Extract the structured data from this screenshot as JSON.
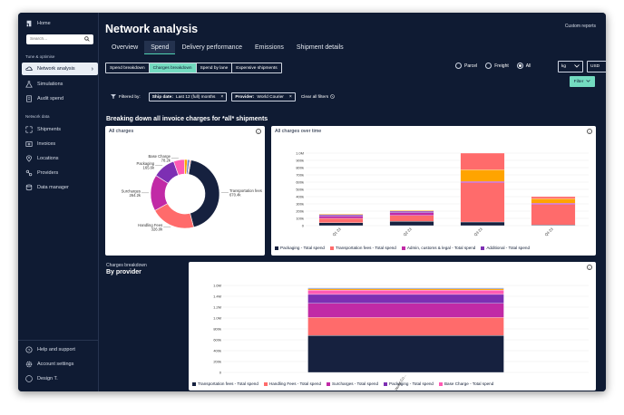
{
  "sidebar": {
    "home": "Home",
    "search_placeholder": "Search...",
    "section_tune": "Tune & optimise",
    "section_network": "Network data",
    "items": [
      {
        "label": "Network analysis",
        "icon": "cloud-icon"
      },
      {
        "label": "Simulations",
        "icon": "flask-icon"
      },
      {
        "label": "Audit spend",
        "icon": "receipt-icon"
      }
    ],
    "network_items": [
      {
        "label": "Shipments",
        "icon": "shipments-icon"
      },
      {
        "label": "Invoices",
        "icon": "invoice-icon"
      },
      {
        "label": "Locations",
        "icon": "location-icon"
      },
      {
        "label": "Providers",
        "icon": "providers-icon"
      },
      {
        "label": "Data manager",
        "icon": "database-icon"
      }
    ],
    "bottom_items": [
      {
        "label": "Help and support",
        "icon": "help-icon"
      },
      {
        "label": "Account settings",
        "icon": "gear-icon"
      },
      {
        "label": "Design T.",
        "icon": "avatar-icon",
        "initials": "DT"
      }
    ]
  },
  "header": {
    "title": "Network analysis",
    "custom_reports": "Custom reports"
  },
  "tabs": [
    "Overview",
    "Spend",
    "Delivery performance",
    "Emissions",
    "Shipment details"
  ],
  "subtabs": [
    "Spend breakdown",
    "Charges breakdown",
    "Spend by lane",
    "Expensive shipments"
  ],
  "modes": [
    "Parcel",
    "Freight",
    "All"
  ],
  "unit_select": "kg",
  "currency_select": "USD",
  "filter_button": "Filter",
  "filters": {
    "label": "Filtered by:",
    "chips": [
      {
        "key": "Ship date:",
        "value": "Last 12 (full) months"
      },
      {
        "key": "Provider:",
        "value": "World Courier"
      }
    ],
    "clear": "Clear all filters"
  },
  "headline": "Breaking down all invoice charges for *all* shipments",
  "colors": {
    "navy": "#16213f",
    "salmon": "#ff6b6b",
    "orange": "#ffa400",
    "magenta": "#c12aa6",
    "purple": "#7d2fb3",
    "pink": "#ff5ab4",
    "blue": "#5a78c8"
  },
  "all_charges": {
    "title": "All charges",
    "slices": [
      {
        "name": "Transportation fees",
        "label": "Transportation fees",
        "value": 670.4,
        "display": "670.4k",
        "color": "#16213f"
      },
      {
        "name": "Handling Fees",
        "label": "Handling Fees",
        "value": 326.0,
        "display": "326.0k",
        "color": "#ff6b6b"
      },
      {
        "name": "Surcharges",
        "label": "Surcharges",
        "value": 264.2,
        "display": "264.2k",
        "color": "#c12aa6"
      },
      {
        "name": "Packaging",
        "label": "Packaging",
        "value": 165.6,
        "display": "165.6k",
        "color": "#7d2fb3"
      },
      {
        "name": "Base Charge",
        "label": "Base Charge",
        "value": 78.2,
        "display": "78.2k",
        "color": "#ff5ab4"
      },
      {
        "name": "Other 1",
        "label": "",
        "value": 22,
        "display": "",
        "color": "#ffa400"
      },
      {
        "name": "Other 2",
        "label": "",
        "value": 16,
        "display": "",
        "color": "#5a78c8"
      },
      {
        "name": "Other 3",
        "label": "",
        "value": 10,
        "display": "",
        "color": "#f4a7a7"
      }
    ]
  },
  "chart_data": [
    {
      "type": "pie",
      "title": "All charges",
      "categories": [
        "Transportation fees",
        "Handling Fees",
        "Surcharges",
        "Packaging",
        "Base Charge"
      ],
      "values": [
        670.4,
        326.0,
        264.2,
        165.6,
        78.2
      ],
      "units": "k"
    },
    {
      "type": "bar",
      "title": "All charges over time",
      "categories": [
        "Q1 23",
        "Q2 23",
        "Q3 23",
        "Q4 23"
      ],
      "ylim": [
        0,
        1000000
      ],
      "yticks": [
        "0",
        "100k",
        "200k",
        "300k",
        "400k",
        "500k",
        "600k",
        "700k",
        "800k",
        "900k",
        "1.0M"
      ],
      "series": [
        {
          "name": "Packaging - Total spend",
          "values": [
            40000,
            60000,
            50000,
            10000
          ],
          "color": "#16213f"
        },
        {
          "name": "Transportation fees - Total spend",
          "values": [
            60000,
            80000,
            540000,
            280000
          ],
          "color": "#ff6b6b"
        },
        {
          "name": "Admin, customs & legal - Total spend",
          "values": [
            30000,
            40000,
            20000,
            20000
          ],
          "color": "#c12aa6"
        },
        {
          "name": "Additional - Total spend",
          "values": [
            20000,
            20000,
            0,
            0
          ],
          "color": "#7d2fb3"
        },
        {
          "name": "",
          "values": [
            10000,
            10000,
            160000,
            60000
          ],
          "color": "#ffa400"
        },
        {
          "name": "",
          "values": [
            0,
            0,
            230000,
            30000
          ],
          "color": "#ff6b6b"
        }
      ],
      "legend": [
        "Packaging - Total spend",
        "Transportation fees - Total spend",
        "Admin, customs & legal - Total spend",
        "Additional - Total spend"
      ]
    },
    {
      "type": "bar",
      "title": "By provider",
      "subtitle": "Charges breakdown",
      "categories": [
        "World Co..."
      ],
      "ylim": [
        0,
        1700000
      ],
      "yticks": [
        "0",
        "200k",
        "400k",
        "600k",
        "800k",
        "1.0M",
        "1.2M",
        "1.4M",
        "1.6M"
      ],
      "series": [
        {
          "name": "Transportation fees - Total spend",
          "values": [
            680000
          ],
          "color": "#16213f"
        },
        {
          "name": "Handling Fees - Total spend",
          "values": [
            330000
          ],
          "color": "#ff6b6b"
        },
        {
          "name": "Surcharges - Total spend",
          "values": [
            260000
          ],
          "color": "#c12aa6"
        },
        {
          "name": "Packaging - Total spend",
          "values": [
            165000
          ],
          "color": "#7d2fb3"
        },
        {
          "name": "Base Charge - Total spend",
          "values": [
            80000
          ],
          "color": "#ff5ab4"
        },
        {
          "name": "",
          "values": [
            25000
          ],
          "color": "#ffa400"
        },
        {
          "name": "",
          "values": [
            15000
          ],
          "color": "#5a78c8"
        }
      ],
      "legend": [
        "Transportation fees - Total spend",
        "Handling Fees - Total spend",
        "Surcharges - Total spend",
        "Packaging - Total spend",
        "Base Charge - Total spend"
      ]
    }
  ]
}
